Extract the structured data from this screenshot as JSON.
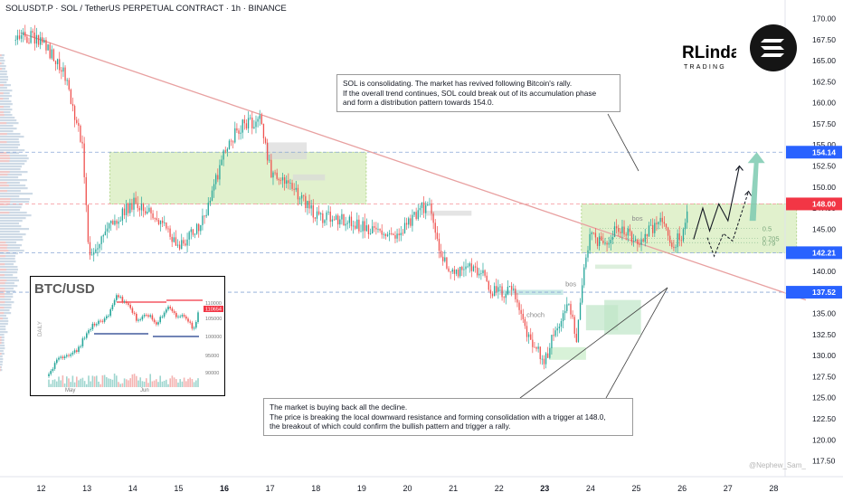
{
  "header": {
    "title": "SOLUSDT.P · SOL / TetherUS PERPETUAL CONTRACT · 1h · BINANCE"
  },
  "brand": {
    "logo_text_1": "RLinda",
    "logo_text_2": "TRADING",
    "icon": "solana-logo-icon"
  },
  "notes": {
    "top": "SOL is consolidating. The market has revived following Bitcoin's rally.\nIf the overall trend continues, SOL could break out of its accumulation phase\nand form a distribution pattern towards 154.0.",
    "bottom": "The market is buying back all the decline.\nThe price is breaking the local downward resistance and forming consolidation with a trigger at 148.0,\nthe breakout of which could confirm the bullish pattern and trigger a rally."
  },
  "watermark": "@Nephew_Sam_",
  "annotations": {
    "bos1": "bos",
    "bos2": "bos",
    "choch": "choch",
    "fib_05": "0.5",
    "fib_0705": "0.705",
    "fib_079": "0.79"
  },
  "colors": {
    "up": "#26a69a",
    "down": "#ef5350",
    "level": "#f23645",
    "accent_level": "#2962ff",
    "zone": "#c8e6a4",
    "resistance_line": "#e8a0a0",
    "forecast": "#26a69a"
  },
  "chart_data": [
    {
      "type": "candlestick",
      "x_ticks": [
        "12",
        "13",
        "14",
        "15",
        "16",
        "17",
        "18",
        "19",
        "20",
        "21",
        "22",
        "23",
        "24",
        "25",
        "26",
        "27",
        "28"
      ],
      "y_ticks": [
        "170.00",
        "167.50",
        "165.00",
        "162.50",
        "160.00",
        "157.50",
        "155.00",
        "152.50",
        "150.00",
        "147.50",
        "145.00",
        "142.50",
        "140.00",
        "137.50",
        "135.00",
        "132.50",
        "130.00",
        "127.50",
        "125.00",
        "122.50",
        "120.00",
        "117.50"
      ],
      "ylim": [
        116,
        171.2
      ],
      "xlim": [
        11.1,
        28.7
      ],
      "levels": [
        {
          "value": 154.14,
          "label": "154.14",
          "color": "#2962ff"
        },
        {
          "value": 148.0,
          "label": "148.00",
          "color": "#f23645"
        },
        {
          "value": 142.21,
          "label": "142.21",
          "color": "#2962ff"
        },
        {
          "value": 137.52,
          "label": "137.52",
          "color": "#2962ff"
        }
      ],
      "key_points": [
        {
          "x": 11.4,
          "y": 168.2
        },
        {
          "x": 12.0,
          "y": 167.5
        },
        {
          "x": 12.5,
          "y": 163.5
        },
        {
          "x": 12.9,
          "y": 155.0
        },
        {
          "x": 13.05,
          "y": 141.5
        },
        {
          "x": 13.4,
          "y": 144.8
        },
        {
          "x": 14.0,
          "y": 148.2
        },
        {
          "x": 14.6,
          "y": 146.0
        },
        {
          "x": 15.0,
          "y": 142.5
        },
        {
          "x": 15.6,
          "y": 146.5
        },
        {
          "x": 16.0,
          "y": 154.5
        },
        {
          "x": 16.4,
          "y": 157.5
        },
        {
          "x": 16.8,
          "y": 158.0
        },
        {
          "x": 17.0,
          "y": 152.0
        },
        {
          "x": 17.4,
          "y": 150.5
        },
        {
          "x": 18.0,
          "y": 146.5
        },
        {
          "x": 18.6,
          "y": 146.2
        },
        {
          "x": 19.2,
          "y": 145.0
        },
        {
          "x": 19.8,
          "y": 144.0
        },
        {
          "x": 20.3,
          "y": 147.5
        },
        {
          "x": 20.5,
          "y": 147.2
        },
        {
          "x": 20.75,
          "y": 142.0
        },
        {
          "x": 21.0,
          "y": 139.5
        },
        {
          "x": 21.5,
          "y": 140.5
        },
        {
          "x": 21.9,
          "y": 137.5
        },
        {
          "x": 22.3,
          "y": 137.5
        },
        {
          "x": 22.6,
          "y": 133.0
        },
        {
          "x": 22.8,
          "y": 131.0
        },
        {
          "x": 23.0,
          "y": 129.5
        },
        {
          "x": 23.2,
          "y": 132.5
        },
        {
          "x": 23.5,
          "y": 136.0
        },
        {
          "x": 23.7,
          "y": 132.0
        },
        {
          "x": 23.85,
          "y": 140.0
        },
        {
          "x": 24.0,
          "y": 144.5
        },
        {
          "x": 24.3,
          "y": 143.0
        },
        {
          "x": 24.6,
          "y": 145.5
        },
        {
          "x": 25.0,
          "y": 143.5
        },
        {
          "x": 25.5,
          "y": 146.0
        },
        {
          "x": 25.8,
          "y": 143.0
        },
        {
          "x": 26.0,
          "y": 144.5
        },
        {
          "x": 26.15,
          "y": 147.5
        }
      ],
      "resistance_line": {
        "from": {
          "x": 11.55,
          "y": 168.3
        },
        "to": {
          "x": 28.7,
          "y": 136.6
        }
      },
      "zones": [
        {
          "x": [
            13.5,
            19.1
          ],
          "y": [
            148.0,
            154.14
          ],
          "color": "#c8e6a4"
        },
        {
          "x": [
            23.8,
            28.5
          ],
          "y": [
            142.21,
            148.0
          ],
          "color": "#c8e6a4"
        }
      ],
      "fib_levels": [
        {
          "label": "0.5",
          "value": 145.1
        },
        {
          "label": "0.705",
          "value": 143.9
        },
        {
          "label": "0.79",
          "value": 143.4
        }
      ],
      "forecast_solid": [
        {
          "x": 26.25,
          "y": 143.8
        },
        {
          "x": 26.45,
          "y": 147.5
        },
        {
          "x": 26.6,
          "y": 144.8
        },
        {
          "x": 26.8,
          "y": 148.0
        },
        {
          "x": 27.0,
          "y": 146.0
        },
        {
          "x": 27.25,
          "y": 152.5
        }
      ],
      "forecast_dashed": [
        {
          "x": 26.55,
          "y": 144.0
        },
        {
          "x": 26.7,
          "y": 141.8
        },
        {
          "x": 26.9,
          "y": 144.5
        },
        {
          "x": 27.1,
          "y": 143.6
        },
        {
          "x": 27.45,
          "y": 149.5
        }
      ],
      "forecast_target": {
        "x": 27.55,
        "y": 154.14
      }
    },
    {
      "type": "line",
      "title": "BTC/USD",
      "y_label": "DAILY",
      "x_ticks": [
        "May",
        "Jun"
      ],
      "y_ticks": [
        "110000",
        "105000",
        "100000",
        "95000",
        "90000"
      ],
      "last_value_label": "110654"
    }
  ]
}
